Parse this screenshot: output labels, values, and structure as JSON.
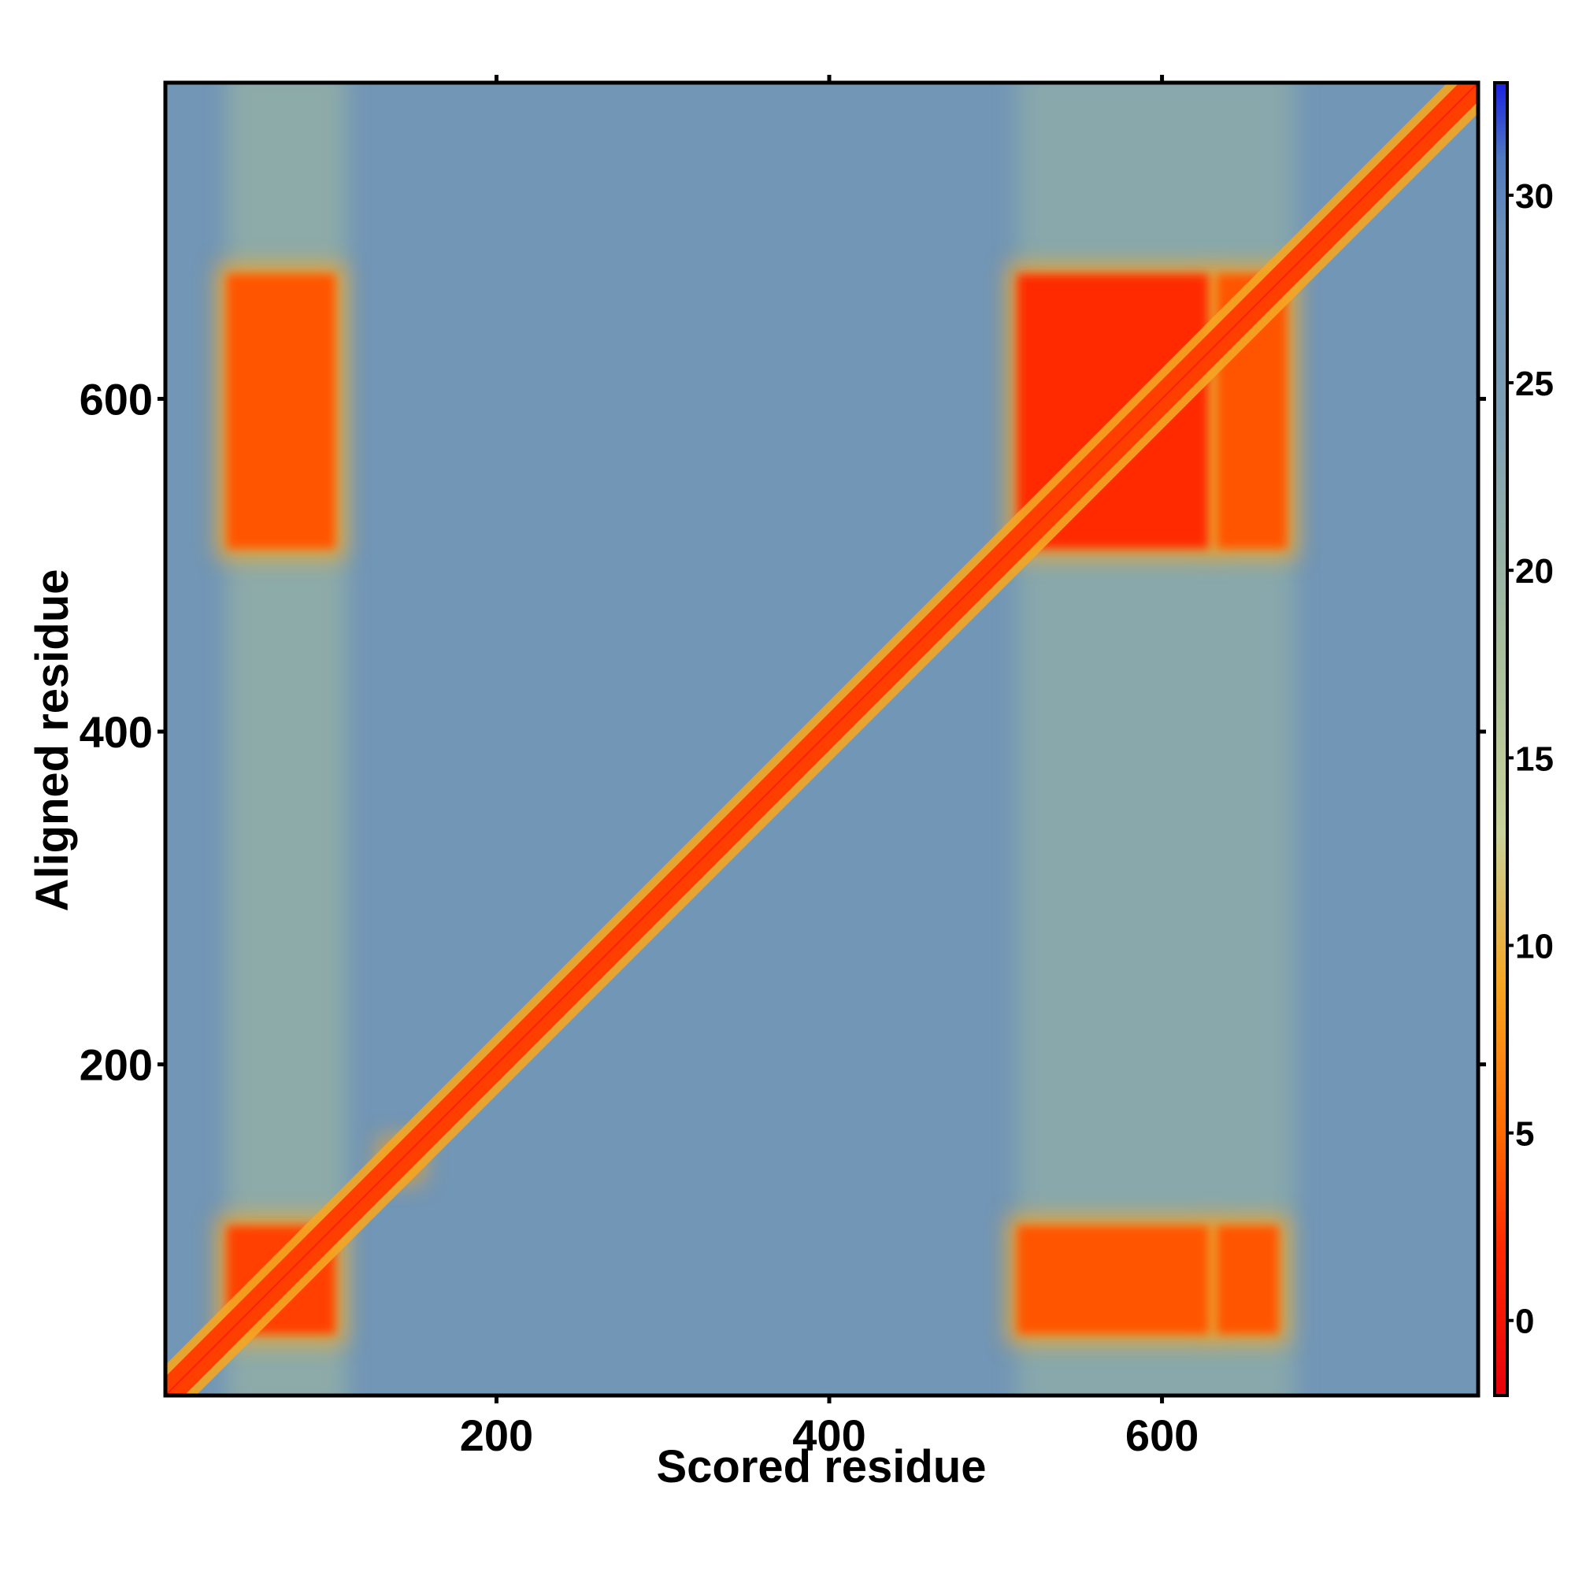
{
  "chart_data": {
    "type": "heatmap",
    "title": "",
    "xlabel": "Scored residue",
    "ylabel": "Aligned residue",
    "xlim": [
      1,
      790
    ],
    "ylim": [
      1,
      790
    ],
    "x_ticks": [
      200,
      400,
      600
    ],
    "x_tick_labels": [
      "200",
      "400",
      "600"
    ],
    "y_ticks": [
      200,
      400,
      600
    ],
    "y_tick_labels": [
      "200",
      "400",
      "600"
    ],
    "colorbar": {
      "range": [
        -2,
        33
      ],
      "ticks": [
        0,
        5,
        10,
        15,
        20,
        25,
        30
      ],
      "tick_labels": [
        "0",
        "5",
        "10",
        "15",
        "20",
        "25",
        "30"
      ],
      "color_stops": [
        {
          "value": -2,
          "color": "#e8000b"
        },
        {
          "value": 2,
          "color": "#ff2a00"
        },
        {
          "value": 5,
          "color": "#ff6a00"
        },
        {
          "value": 9,
          "color": "#f5a623"
        },
        {
          "value": 13,
          "color": "#c8d29a"
        },
        {
          "value": 18,
          "color": "#a6be9c"
        },
        {
          "value": 24,
          "color": "#7d9fb4"
        },
        {
          "value": 29,
          "color": "#6b90b8"
        },
        {
          "value": 31,
          "color": "#4f79c0"
        },
        {
          "value": 33,
          "color": "#1a22e0"
        }
      ]
    },
    "background_value": 27,
    "diagonal": {
      "value": 1,
      "halfwidth": 10
    },
    "high_confidence_blocks": [
      {
        "x": [
          38,
          103
        ],
        "y": [
          38,
          103
        ],
        "value": 3
      },
      {
        "x": [
          38,
          103
        ],
        "y": [
          510,
          675
        ],
        "value": 4
      },
      {
        "x": [
          513,
          628
        ],
        "y": [
          38,
          103
        ],
        "value": 4
      },
      {
        "x": [
          633,
          670
        ],
        "y": [
          38,
          103
        ],
        "value": 4
      },
      {
        "x": [
          513,
          628
        ],
        "y": [
          510,
          675
        ],
        "value": 2
      },
      {
        "x": [
          633,
          675
        ],
        "y": [
          510,
          675
        ],
        "value": 4
      },
      {
        "x": [
          135,
          150
        ],
        "y": [
          135,
          150
        ],
        "value": 3
      }
    ],
    "moderate_bands_x": [
      {
        "x": [
          38,
          110
        ],
        "value": 20
      },
      {
        "x": [
          513,
          680
        ],
        "value": 21
      }
    ]
  }
}
